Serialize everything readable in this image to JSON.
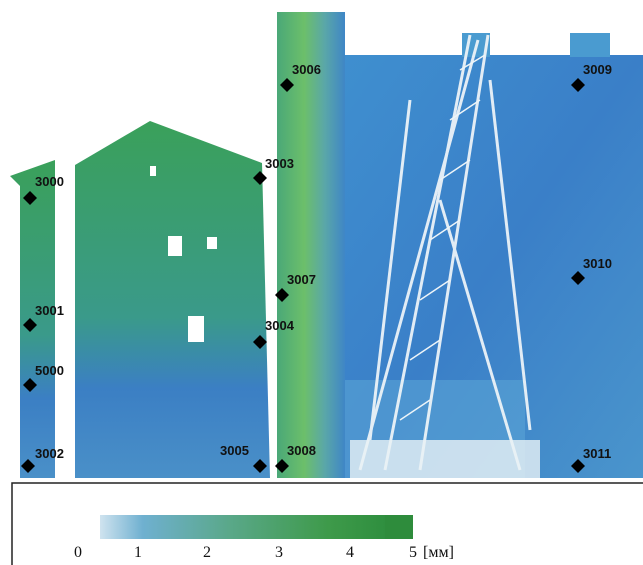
{
  "markers": [
    "3000",
    "3001",
    "5000",
    "3002",
    "3003",
    "3004",
    "3005",
    "3006",
    "3007",
    "3008",
    "3009",
    "3010",
    "3011"
  ],
  "scale": {
    "labels": [
      "0",
      "1",
      "2",
      "3",
      "4",
      "5"
    ],
    "unit": "[мм]"
  }
}
